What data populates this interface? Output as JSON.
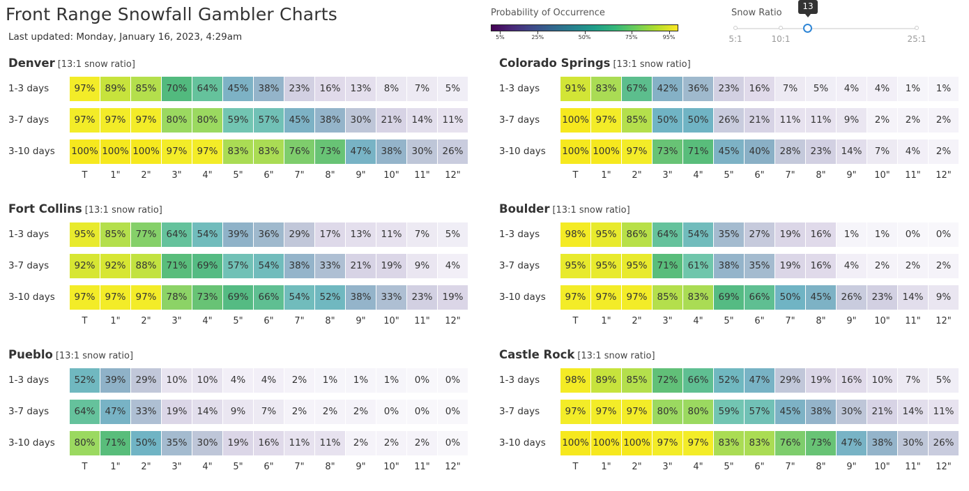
{
  "title": "Front Range Snowfall Gambler Charts",
  "updated": "Last updated: Monday, January 16, 2023, 4:29am",
  "legend": {
    "title": "Probability of Occurrence",
    "ticks": [
      "5%",
      "25%",
      "50%",
      "75%",
      "95%"
    ],
    "tick_values": [
      5,
      25,
      50,
      75,
      95
    ]
  },
  "slider": {
    "title": "Snow Ratio",
    "value": "13",
    "min_label": "5:1",
    "mid_label": "10:1",
    "max_label": "25:1",
    "min": 5,
    "max": 25,
    "current": 13
  },
  "chart_data": [
    {
      "type": "heatmap",
      "title": "Denver",
      "subtitle": "[13:1 snow ratio]",
      "rows": [
        "1-3 days",
        "3-7 days",
        "3-10 days"
      ],
      "columns": [
        "T",
        "1\"",
        "2\"",
        "3\"",
        "4\"",
        "5\"",
        "6\"",
        "7\"",
        "8\"",
        "9\"",
        "10\"",
        "11\"",
        "12\""
      ],
      "values": [
        [
          97,
          89,
          85,
          70,
          64,
          45,
          38,
          23,
          16,
          13,
          8,
          7,
          5
        ],
        [
          97,
          97,
          97,
          80,
          80,
          59,
          57,
          45,
          38,
          30,
          21,
          14,
          11
        ],
        [
          100,
          100,
          100,
          97,
          97,
          83,
          83,
          76,
          73,
          47,
          38,
          30,
          26
        ]
      ]
    },
    {
      "type": "heatmap",
      "title": "Colorado Springs",
      "subtitle": "[13:1 snow ratio]",
      "rows": [
        "1-3 days",
        "3-7 days",
        "3-10 days"
      ],
      "columns": [
        "T",
        "1\"",
        "2\"",
        "3\"",
        "4\"",
        "5\"",
        "6\"",
        "7\"",
        "8\"",
        "9\"",
        "10\"",
        "11\"",
        "12\""
      ],
      "values": [
        [
          91,
          83,
          67,
          42,
          36,
          23,
          16,
          7,
          5,
          4,
          4,
          1,
          1
        ],
        [
          100,
          97,
          85,
          50,
          50,
          26,
          21,
          11,
          11,
          9,
          2,
          2,
          2
        ],
        [
          100,
          100,
          97,
          73,
          71,
          45,
          40,
          28,
          23,
          14,
          7,
          4,
          2
        ]
      ]
    },
    {
      "type": "heatmap",
      "title": "Fort Collins",
      "subtitle": "[13:1 snow ratio]",
      "rows": [
        "1-3 days",
        "3-7 days",
        "3-10 days"
      ],
      "columns": [
        "T",
        "1\"",
        "2\"",
        "3\"",
        "4\"",
        "5\"",
        "6\"",
        "7\"",
        "8\"",
        "9\"",
        "10\"",
        "11\"",
        "12\""
      ],
      "values": [
        [
          95,
          85,
          77,
          64,
          54,
          39,
          36,
          29,
          17,
          13,
          11,
          7,
          5
        ],
        [
          92,
          92,
          88,
          71,
          69,
          57,
          54,
          38,
          33,
          21,
          19,
          9,
          4
        ],
        [
          97,
          97,
          97,
          78,
          73,
          69,
          66,
          54,
          52,
          38,
          33,
          23,
          19
        ]
      ]
    },
    {
      "type": "heatmap",
      "title": "Boulder",
      "subtitle": "[13:1 snow ratio]",
      "rows": [
        "1-3 days",
        "3-7 days",
        "3-10 days"
      ],
      "columns": [
        "T",
        "1\"",
        "2\"",
        "3\"",
        "4\"",
        "5\"",
        "6\"",
        "7\"",
        "8\"",
        "9\"",
        "10\"",
        "11\"",
        "12\""
      ],
      "values": [
        [
          98,
          95,
          86,
          64,
          54,
          35,
          27,
          19,
          16,
          1,
          1,
          0,
          0
        ],
        [
          95,
          95,
          95,
          71,
          61,
          38,
          35,
          19,
          16,
          4,
          2,
          2,
          2
        ],
        [
          97,
          97,
          97,
          85,
          83,
          69,
          66,
          50,
          45,
          26,
          23,
          14,
          9
        ]
      ]
    },
    {
      "type": "heatmap",
      "title": "Pueblo",
      "subtitle": "[13:1 snow ratio]",
      "rows": [
        "1-3 days",
        "3-7 days",
        "3-10 days"
      ],
      "columns": [
        "T",
        "1\"",
        "2\"",
        "3\"",
        "4\"",
        "5\"",
        "6\"",
        "7\"",
        "8\"",
        "9\"",
        "10\"",
        "11\"",
        "12\""
      ],
      "values": [
        [
          52,
          39,
          29,
          10,
          10,
          4,
          4,
          2,
          1,
          1,
          1,
          0,
          0
        ],
        [
          64,
          47,
          33,
          19,
          14,
          9,
          7,
          2,
          2,
          2,
          0,
          0,
          0
        ],
        [
          80,
          71,
          50,
          35,
          30,
          19,
          16,
          11,
          11,
          2,
          2,
          2,
          0
        ]
      ]
    },
    {
      "type": "heatmap",
      "title": "Castle Rock",
      "subtitle": "[13:1 snow ratio]",
      "rows": [
        "1-3 days",
        "3-7 days",
        "3-10 days"
      ],
      "columns": [
        "T",
        "1\"",
        "2\"",
        "3\"",
        "4\"",
        "5\"",
        "6\"",
        "7\"",
        "8\"",
        "9\"",
        "10\"",
        "11\"",
        "12\""
      ],
      "values": [
        [
          98,
          89,
          85,
          72,
          66,
          52,
          47,
          29,
          19,
          16,
          10,
          7,
          5
        ],
        [
          97,
          97,
          97,
          80,
          80,
          59,
          57,
          45,
          38,
          30,
          21,
          14,
          11
        ],
        [
          100,
          100,
          100,
          97,
          97,
          83,
          83,
          76,
          73,
          47,
          38,
          30,
          26
        ]
      ]
    }
  ]
}
